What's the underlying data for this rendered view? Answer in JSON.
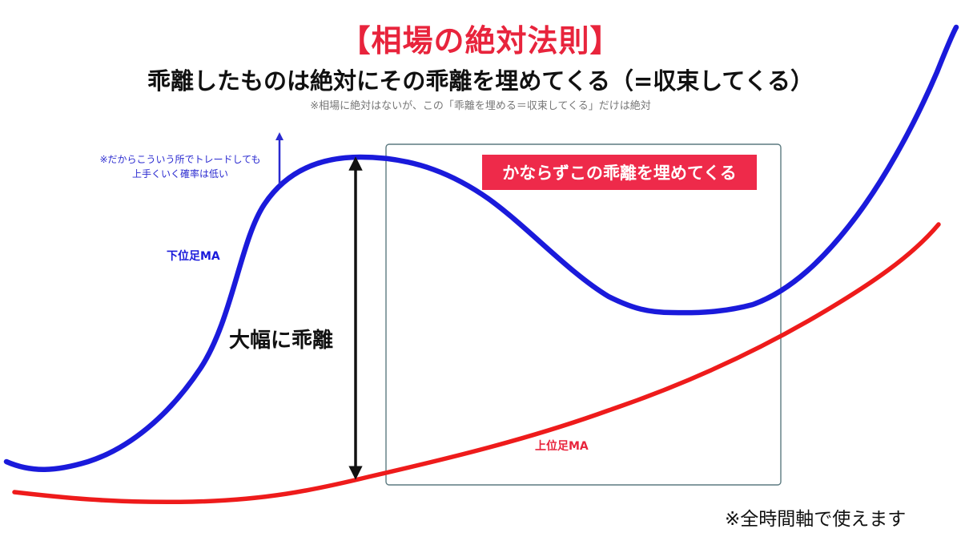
{
  "header": {
    "title": "【相場の絶対法則】",
    "subtitle": "乖離したものは絶対にその乖離を埋めてくる（=収束してくる）",
    "note": "※相場に絶対はないが、この「乖離を埋める＝収束してくる」だけは絶対"
  },
  "annotations": {
    "blue_note_line1": "※だからこういう所でトレードしても",
    "blue_note_line2": "上手くいく確率は低い",
    "lower_ma_label": "下位足MA",
    "upper_ma_label": "上位足MA",
    "gap_label": "大幅に乖離",
    "convergence_label": "かならずこの乖離を埋めてくる",
    "footer": "※全時間軸で使えます"
  },
  "colors": {
    "lower_ma": "#1a1adb",
    "upper_ma": "#ee1b1b",
    "title": "#e8243c",
    "badge": "#ee2a4a",
    "box_border": "#5c7a80"
  },
  "icons": {
    "gap_arrow": "double-headed-vertical-arrow",
    "note_arrow": "up-arrow"
  }
}
